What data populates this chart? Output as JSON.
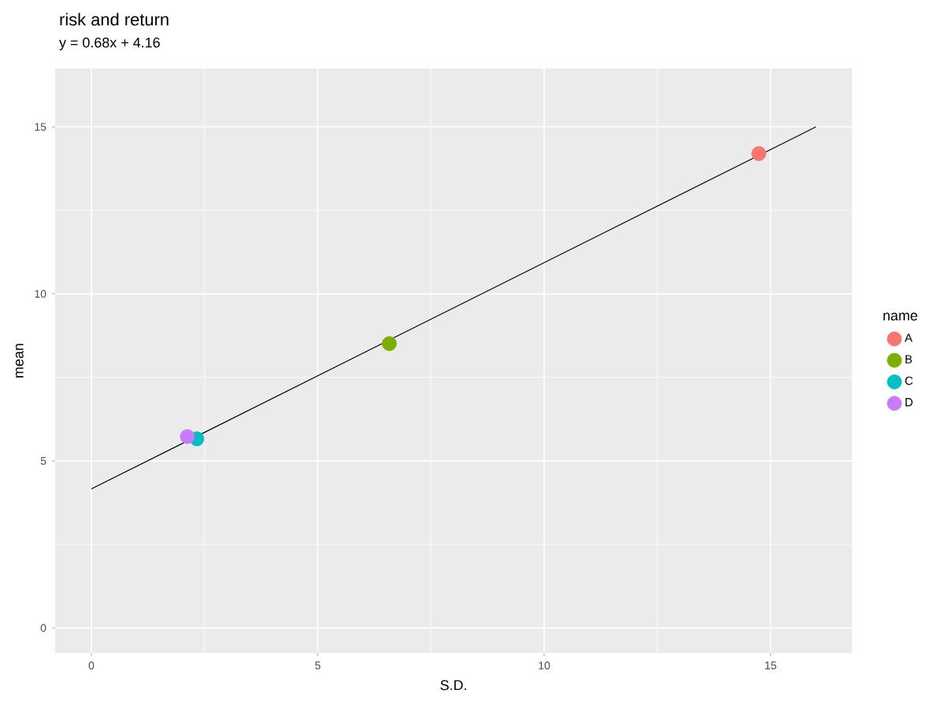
{
  "chart_data": {
    "type": "scatter",
    "title": "risk and return",
    "subtitle": "y = 0.68x + 4.16",
    "xlabel": "S.D.",
    "ylabel": "mean",
    "legend_title": "name",
    "series": [
      {
        "name": "A",
        "marker": "circle",
        "color": "#f8766d",
        "x": [
          14.74
        ],
        "values": [
          14.2
        ]
      },
      {
        "name": "B",
        "marker": "circle",
        "color": "#7cae00",
        "x": [
          6.58
        ],
        "values": [
          8.51
        ]
      },
      {
        "name": "C",
        "marker": "circle",
        "color": "#00bfc4",
        "x": [
          2.33
        ],
        "values": [
          5.66
        ]
      },
      {
        "name": "D",
        "marker": "circle",
        "color": "#c77cff",
        "x": [
          2.12
        ],
        "values": [
          5.73
        ]
      },
      {
        "type": "line",
        "marker": "none",
        "color": "#000000",
        "x": [
          0,
          16
        ],
        "values": [
          4.16,
          15.0
        ]
      }
    ],
    "xlim": [
      -0.8,
      16.8
    ],
    "ylim": [
      -0.75,
      16.75
    ],
    "xticks": [
      0,
      5,
      10,
      15
    ],
    "yticks": [
      0,
      5,
      10,
      15
    ],
    "grid": true,
    "legend": "right"
  }
}
